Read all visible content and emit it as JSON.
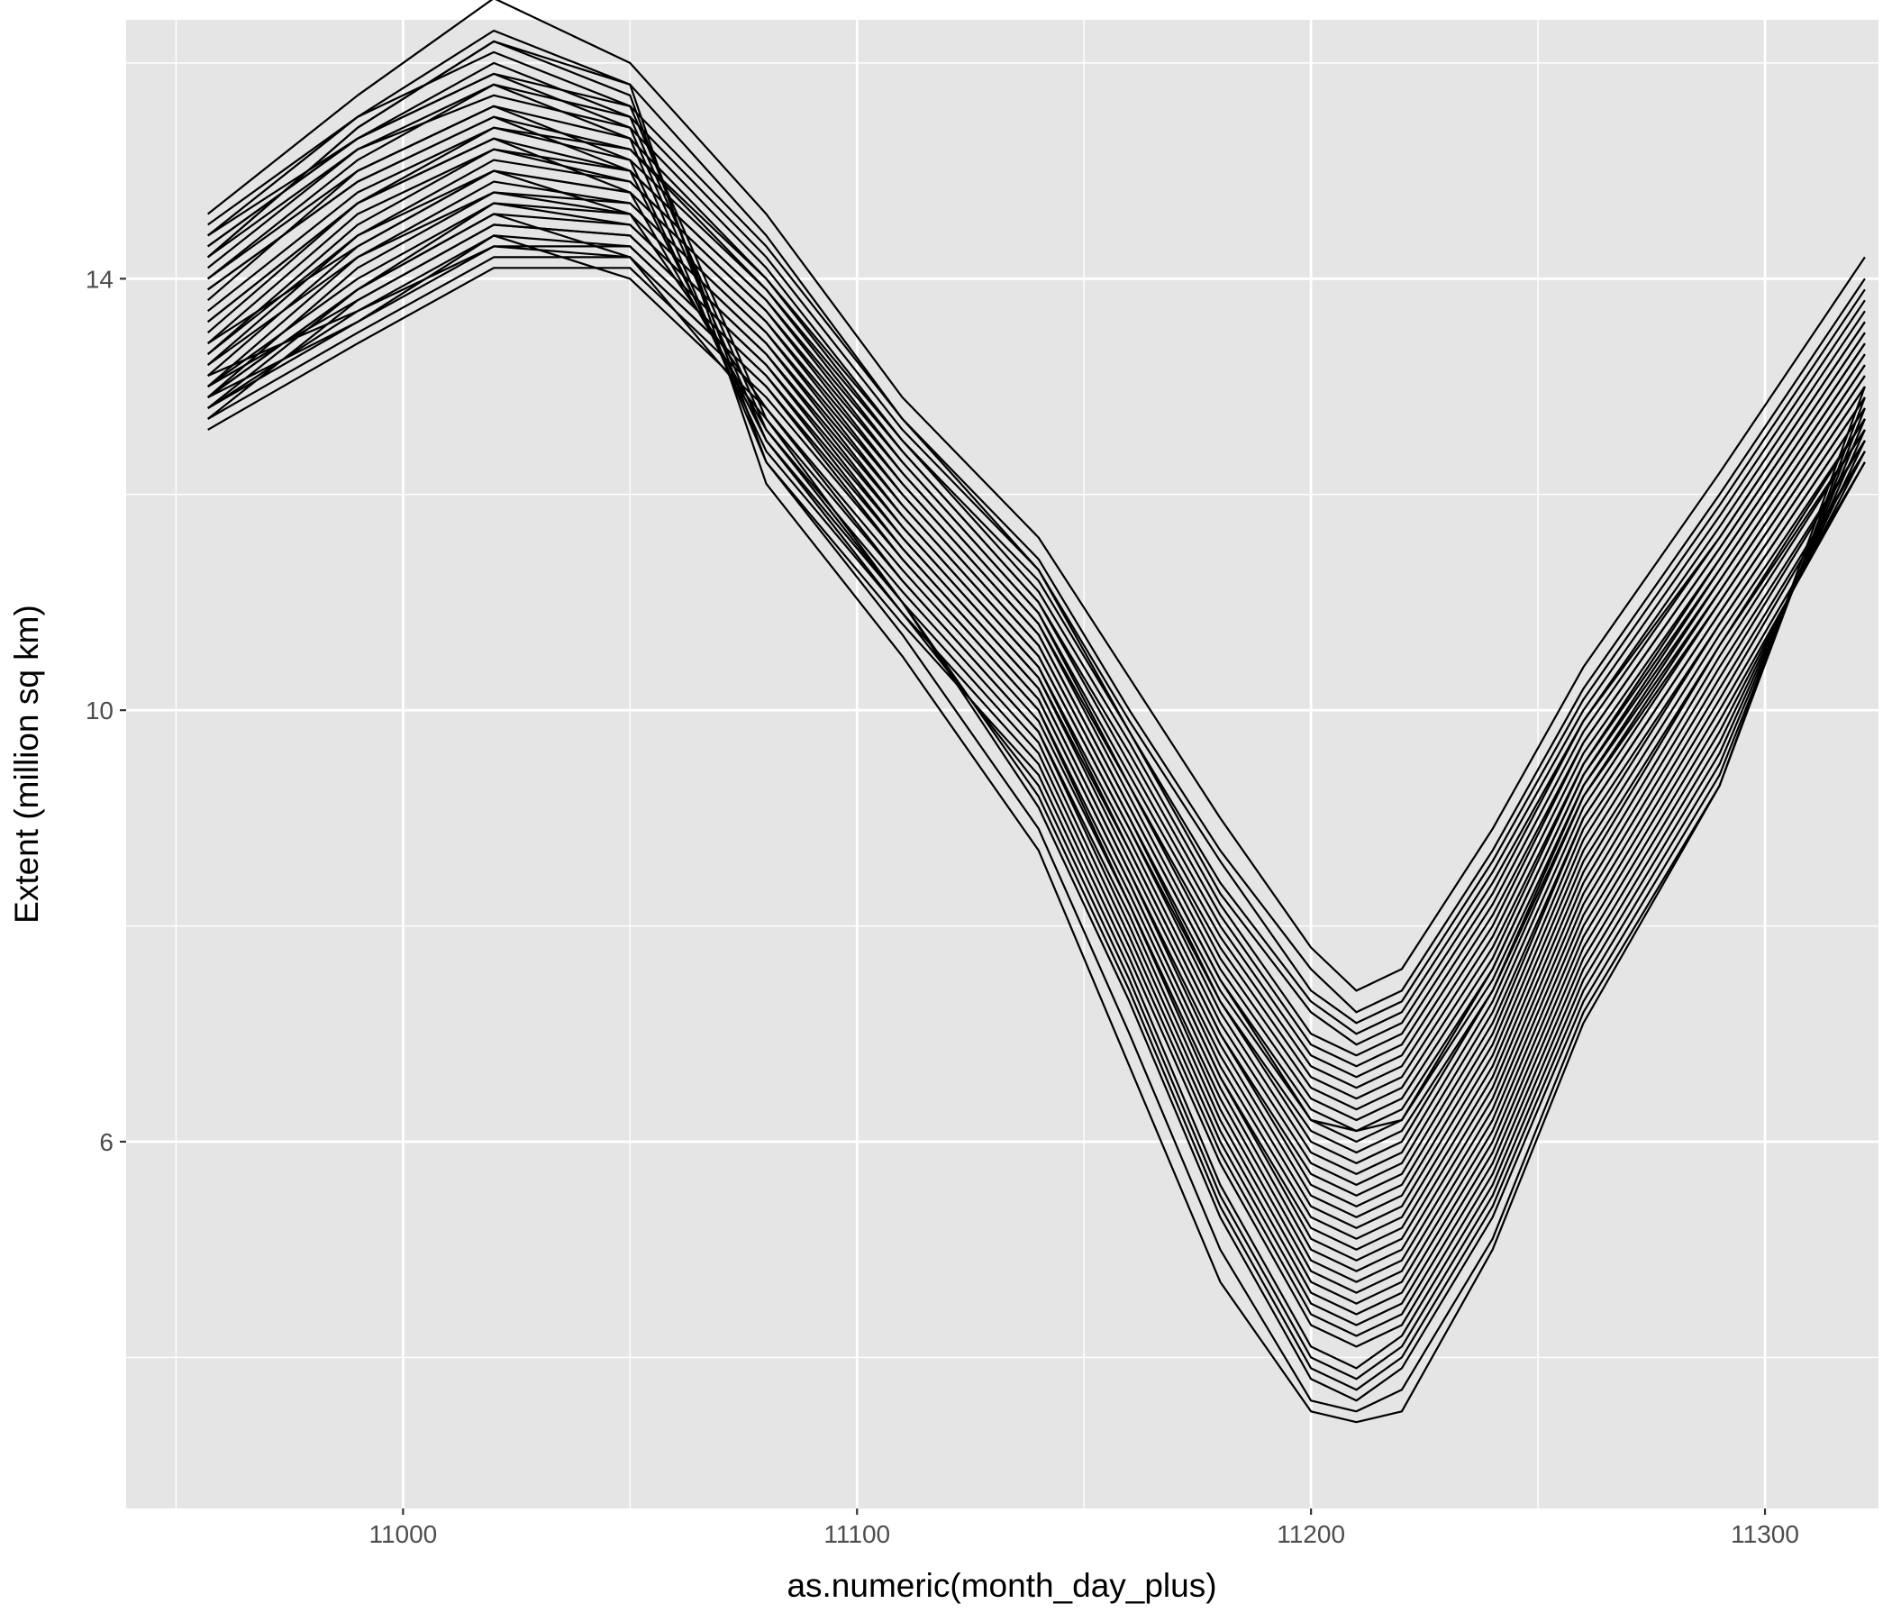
{
  "chart_data": {
    "type": "line",
    "title": "",
    "xlabel": "as.numeric(month_day_plus)",
    "ylabel": "Extent (million sq km)",
    "xlim": [
      10939,
      11325
    ],
    "ylim": [
      2.6,
      16.4
    ],
    "x_ticks": [
      11000,
      11100,
      11200,
      11300
    ],
    "y_ticks": [
      6,
      10,
      14
    ],
    "x_minor_gridlines": [
      10950,
      11050,
      11150,
      11250
    ],
    "y_minor_gridlines": [
      4,
      8,
      12,
      16
    ],
    "grid": true,
    "legend": "none",
    "series_color": "#000000",
    "panel_background": "#e5e5e5",
    "series_count": 40,
    "series_style": "each line is one year of daily values, x from 10957 to 11322; curves share a peak near x=11020 (about 14.3-16.6) and a minimum near x=11210 (about 3.4-7.3), with a steep decline between x=11140 and x=11200 and a rise back to about 12.4-14.2 by x=11322",
    "x": [
      10957,
      10990,
      11020,
      11050,
      11080,
      11110,
      11140,
      11160,
      11180,
      11200,
      11210,
      11220,
      11240,
      11260,
      11290,
      11322
    ],
    "series": [
      {
        "values": [
          14.6,
          15.7,
          16.6,
          16.0,
          14.6,
          12.9,
          11.6,
          10.3,
          9.0,
          7.8,
          7.4,
          7.6,
          8.9,
          10.4,
          12.2,
          14.2
        ]
      },
      {
        "values": [
          14.2,
          15.4,
          16.2,
          15.8,
          14.4,
          12.7,
          11.4,
          10.0,
          8.7,
          7.6,
          7.2,
          7.4,
          8.7,
          10.2,
          12.0,
          14.0
        ]
      },
      {
        "values": [
          14.3,
          15.3,
          15.9,
          15.6,
          14.3,
          12.7,
          11.3,
          9.9,
          8.6,
          7.4,
          7.1,
          7.3,
          8.6,
          10.1,
          11.9,
          13.9
        ]
      },
      {
        "values": [
          14.0,
          15.1,
          15.8,
          15.5,
          14.2,
          12.6,
          11.3,
          9.8,
          8.4,
          7.3,
          7.0,
          7.2,
          8.5,
          10.0,
          11.8,
          13.8
        ]
      },
      {
        "values": [
          14.1,
          15.2,
          15.7,
          15.4,
          14.1,
          12.5,
          11.2,
          9.8,
          8.3,
          7.2,
          6.9,
          7.1,
          8.4,
          9.9,
          11.7,
          13.7
        ]
      },
      {
        "values": [
          13.8,
          15.0,
          15.6,
          15.3,
          14.0,
          12.5,
          11.1,
          9.7,
          8.2,
          7.0,
          6.8,
          7.0,
          8.3,
          9.9,
          11.6,
          13.6
        ]
      },
      {
        "values": [
          13.9,
          14.9,
          15.5,
          15.2,
          14.0,
          12.4,
          11.0,
          9.6,
          8.1,
          6.9,
          6.7,
          6.9,
          8.2,
          9.8,
          11.6,
          13.6
        ]
      },
      {
        "values": [
          13.7,
          14.8,
          15.4,
          15.2,
          13.9,
          12.4,
          11.0,
          9.5,
          8.0,
          6.8,
          6.6,
          6.8,
          8.1,
          9.7,
          11.5,
          13.5
        ]
      },
      {
        "values": [
          13.6,
          14.7,
          15.4,
          15.1,
          13.9,
          12.3,
          10.9,
          9.4,
          7.9,
          6.7,
          6.5,
          6.7,
          8.0,
          9.7,
          11.5,
          13.5
        ]
      },
      {
        "values": [
          13.5,
          14.7,
          15.3,
          15.0,
          13.8,
          12.3,
          10.9,
          9.3,
          7.8,
          6.6,
          6.4,
          6.6,
          7.9,
          9.6,
          11.4,
          13.4
        ]
      },
      {
        "values": [
          13.4,
          14.6,
          15.2,
          15.0,
          13.8,
          12.2,
          10.8,
          9.3,
          7.7,
          6.5,
          6.3,
          6.5,
          7.8,
          9.5,
          11.4,
          13.4
        ]
      },
      {
        "values": [
          13.3,
          14.5,
          15.2,
          14.9,
          13.7,
          12.2,
          10.8,
          9.2,
          7.6,
          6.4,
          6.2,
          6.4,
          7.7,
          9.5,
          11.3,
          13.3
        ]
      },
      {
        "values": [
          13.2,
          14.4,
          15.1,
          14.9,
          13.7,
          12.1,
          10.7,
          9.1,
          7.5,
          6.3,
          6.1,
          6.3,
          7.6,
          9.4,
          11.3,
          13.3
        ]
      },
      {
        "values": [
          13.4,
          14.3,
          15.0,
          14.8,
          13.6,
          12.1,
          10.7,
          9.1,
          7.5,
          6.2,
          6.1,
          6.2,
          7.6,
          9.4,
          11.2,
          13.2
        ]
      },
      {
        "values": [
          13.1,
          14.3,
          15.0,
          14.8,
          13.6,
          12.0,
          10.6,
          9.0,
          7.4,
          6.2,
          6.0,
          6.2,
          7.5,
          9.3,
          11.2,
          13.2
        ]
      },
      {
        "values": [
          13.0,
          14.2,
          14.9,
          14.7,
          13.5,
          12.0,
          10.6,
          9.0,
          7.3,
          6.1,
          5.9,
          6.1,
          7.4,
          9.3,
          11.1,
          13.1
        ]
      },
      {
        "values": [
          12.9,
          14.1,
          14.8,
          14.7,
          13.5,
          11.9,
          10.5,
          8.9,
          7.3,
          6.0,
          5.8,
          6.0,
          7.4,
          9.2,
          11.1,
          13.1
        ]
      },
      {
        "values": [
          13.2,
          14.2,
          14.8,
          14.6,
          13.4,
          11.9,
          10.5,
          8.9,
          7.2,
          5.9,
          5.7,
          5.9,
          7.3,
          9.2,
          11.0,
          13.0
        ]
      },
      {
        "values": [
          13.0,
          14.0,
          14.7,
          14.6,
          13.4,
          11.8,
          10.4,
          8.8,
          7.1,
          5.8,
          5.6,
          5.8,
          7.2,
          9.1,
          11.0,
          13.0
        ]
      },
      {
        "values": [
          12.8,
          13.9,
          14.7,
          14.5,
          13.3,
          11.8,
          10.4,
          8.7,
          7.0,
          5.7,
          5.5,
          5.7,
          7.1,
          9.0,
          10.9,
          12.9
        ]
      },
      {
        "values": [
          12.9,
          13.9,
          14.6,
          14.5,
          13.3,
          11.7,
          10.3,
          8.7,
          7.0,
          5.6,
          5.4,
          5.6,
          7.0,
          9.0,
          10.9,
          12.9
        ]
      },
      {
        "values": [
          12.7,
          13.8,
          14.5,
          14.4,
          13.2,
          11.7,
          10.3,
          8.6,
          6.9,
          5.5,
          5.3,
          5.5,
          6.9,
          8.9,
          10.8,
          12.8
        ]
      },
      {
        "values": [
          13.0,
          13.8,
          14.5,
          14.4,
          13.2,
          11.6,
          10.2,
          8.5,
          6.8,
          5.4,
          5.2,
          5.4,
          6.8,
          8.8,
          10.8,
          12.8
        ]
      },
      {
        "values": [
          12.8,
          13.7,
          14.4,
          14.3,
          13.1,
          11.6,
          10.2,
          8.5,
          6.7,
          5.3,
          5.1,
          5.3,
          6.7,
          8.7,
          10.7,
          12.7
        ]
      },
      {
        "values": [
          13.1,
          13.7,
          14.3,
          14.3,
          13.1,
          11.5,
          10.1,
          8.4,
          6.6,
          5.2,
          5.0,
          5.2,
          6.6,
          8.6,
          10.6,
          12.7
        ]
      },
      {
        "values": [
          12.9,
          13.6,
          14.3,
          14.2,
          13.0,
          11.5,
          10.1,
          8.4,
          6.6,
          5.1,
          4.9,
          5.1,
          6.5,
          8.5,
          10.6,
          12.6
        ]
      },
      {
        "values": [
          12.7,
          13.5,
          14.2,
          14.2,
          13.0,
          11.4,
          10.0,
          8.3,
          6.5,
          5.0,
          4.8,
          5.0,
          6.4,
          8.4,
          10.5,
          12.6
        ]
      },
      {
        "values": [
          12.6,
          13.4,
          14.1,
          14.1,
          12.9,
          11.4,
          10.0,
          8.2,
          6.4,
          4.9,
          4.7,
          4.9,
          6.3,
          8.3,
          10.4,
          12.5
        ]
      },
      {
        "values": [
          12.8,
          13.6,
          14.4,
          14.0,
          12.8,
          11.3,
          9.9,
          8.2,
          6.3,
          4.8,
          4.6,
          4.8,
          6.2,
          8.2,
          10.3,
          12.5
        ]
      },
      {
        "values": [
          12.9,
          13.9,
          14.6,
          14.2,
          12.7,
          11.2,
          9.8,
          8.1,
          6.2,
          4.7,
          4.5,
          4.7,
          6.1,
          8.1,
          10.2,
          12.4
        ]
      },
      {
        "values": [
          13.3,
          14.4,
          15.0,
          14.6,
          12.8,
          11.2,
          9.8,
          8.0,
          6.1,
          4.6,
          4.4,
          4.6,
          6.0,
          8.0,
          10.1,
          12.4
        ]
      },
      {
        "values": [
          13.6,
          14.7,
          15.3,
          14.8,
          12.6,
          11.1,
          9.7,
          7.9,
          6.0,
          4.5,
          4.3,
          4.5,
          5.9,
          7.9,
          10.0,
          12.3
        ]
      },
      {
        "values": [
          13.9,
          14.9,
          15.5,
          15.0,
          12.5,
          11.0,
          9.6,
          7.8,
          5.9,
          4.4,
          4.2,
          4.4,
          5.8,
          7.8,
          9.9,
          12.3
        ]
      },
      {
        "values": [
          14.0,
          15.0,
          15.6,
          15.1,
          12.4,
          10.9,
          9.5,
          7.7,
          5.8,
          4.3,
          4.1,
          4.3,
          5.7,
          7.7,
          9.8,
          12.4
        ]
      },
      {
        "values": [
          14.2,
          15.2,
          15.8,
          15.3,
          12.3,
          10.8,
          9.4,
          7.6,
          5.6,
          4.1,
          3.9,
          4.2,
          5.6,
          7.6,
          9.7,
          12.5
        ]
      },
      {
        "values": [
          14.3,
          15.3,
          15.9,
          15.4,
          12.5,
          10.9,
          9.3,
          7.5,
          5.5,
          4.0,
          3.8,
          4.1,
          5.5,
          7.5,
          9.6,
          12.6
        ]
      },
      {
        "values": [
          14.4,
          15.3,
          16.0,
          15.5,
          12.6,
          11.0,
          9.2,
          7.4,
          5.4,
          3.9,
          3.7,
          4.0,
          5.4,
          7.4,
          9.5,
          12.7
        ]
      },
      {
        "values": [
          14.5,
          15.5,
          16.1,
          15.6,
          12.7,
          11.0,
          9.1,
          7.3,
          5.3,
          3.8,
          3.6,
          3.9,
          5.3,
          7.3,
          9.4,
          12.8
        ]
      },
      {
        "values": [
          14.2,
          15.4,
          16.2,
          15.7,
          12.3,
          10.7,
          8.9,
          7.0,
          5.0,
          3.6,
          3.5,
          3.7,
          5.1,
          7.2,
          9.3,
          12.9
        ]
      },
      {
        "values": [
          14.4,
          15.5,
          16.3,
          15.8,
          12.1,
          10.5,
          8.7,
          6.7,
          4.7,
          3.5,
          3.4,
          3.5,
          5.0,
          7.1,
          9.3,
          13.0
        ]
      }
    ]
  }
}
